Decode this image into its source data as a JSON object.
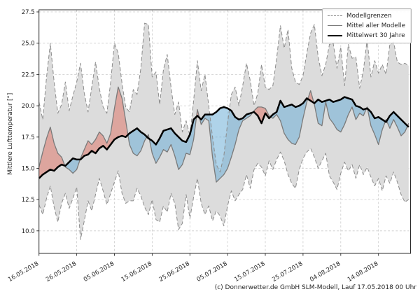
{
  "footer": {
    "text": "(c) Donnerwetter.de GmbH SLM-Modell, Lauf 17.05.2018 00 Uhr"
  },
  "chart_data": {
    "type": "line",
    "title": "",
    "xlabel": "",
    "ylabel": "Mittlere Lufttemperatur [°]",
    "ylim": [
      8.2,
      27.67
    ],
    "yticks": [
      10.0,
      12.5,
      15.0,
      17.5,
      20.0,
      22.5,
      25.0,
      27.5
    ],
    "grid": true,
    "legend_position": "upper right",
    "x_unit": "days since 16.05.2018",
    "x_tick_days": [
      0,
      10,
      20,
      30,
      40,
      50,
      60,
      70,
      80,
      90
    ],
    "x_tick_labels": [
      "16.05.2018",
      "26.05.2018",
      "05.06.2018",
      "15.06.2018",
      "25.06.2018",
      "05.07.2018",
      "15.07.2018",
      "25.07.2018",
      "04.08.2018",
      "14.08.2018"
    ],
    "legend": [
      {
        "label": "Modellgrenzen",
        "style": "dashed-gray"
      },
      {
        "label": "Mittel aller Modelle",
        "style": "solid-gray"
      },
      {
        "label": "Mittelwert 30 Jahre",
        "style": "solid-black-thick"
      }
    ],
    "colors": {
      "band_fill": "#dcdcdc",
      "band_border": "#8c8c8c",
      "mean_line": "#7a7a7a",
      "clim_line": "#000000",
      "warm_fill": "rgba(222,110,95,0.5)",
      "cold_fill": "rgba(110,175,215,0.55)",
      "grid": "#cccccc"
    },
    "series": [
      {
        "name": "Modellgrenzen (oberes Limit)",
        "values": [
          20.3,
          18.9,
          22.3,
          25.0,
          21.9,
          19.4,
          20.1,
          21.9,
          19.6,
          20.8,
          21.9,
          23.4,
          21.0,
          19.5,
          21.5,
          23.5,
          21.4,
          19.9,
          19.4,
          21.9,
          25.0,
          24.2,
          21.8,
          19.9,
          19.5,
          21.3,
          20.9,
          23.0,
          26.6,
          26.5,
          22.3,
          22.7,
          20.1,
          22.9,
          24.1,
          21.5,
          19.3,
          20.3,
          17.9,
          18.8,
          17.6,
          20.4,
          23.6,
          21.2,
          22.5,
          20.0,
          17.5,
          15.3,
          14.7,
          16.0,
          18.6,
          20.9,
          21.5,
          20.0,
          21.6,
          23.4,
          22.0,
          20.0,
          21.0,
          23.3,
          21.5,
          21.3,
          21.6,
          23.8,
          26.4,
          24.6,
          26.1,
          23.0,
          21.9,
          21.7,
          22.4,
          24.2,
          25.8,
          26.5,
          23.9,
          22.4,
          23.3,
          24.9,
          25.0,
          23.0,
          24.7,
          21.6,
          24.9,
          23.8,
          23.9,
          21.4,
          22.8,
          25.3,
          22.3,
          23.6,
          22.6,
          23.3,
          22.5,
          24.9,
          25.1,
          23.5,
          23.3,
          23.4,
          23.2
        ]
      },
      {
        "name": "Modellgrenzen (unteres Limit)",
        "values": [
          12.1,
          11.3,
          12.6,
          13.6,
          11.9,
          10.7,
          12.2,
          13.0,
          11.8,
          12.6,
          13.5,
          9.3,
          10.8,
          12.4,
          11.6,
          12.9,
          14.2,
          13.2,
          12.1,
          13.0,
          13.9,
          14.8,
          13.0,
          12.2,
          12.4,
          12.4,
          13.4,
          12.8,
          11.9,
          11.3,
          12.5,
          10.9,
          10.7,
          12.0,
          11.5,
          13.0,
          12.2,
          10.1,
          10.6,
          12.9,
          11.0,
          12.7,
          14.2,
          12.2,
          11.3,
          12.0,
          10.8,
          11.6,
          11.2,
          10.4,
          12.0,
          13.2,
          12.4,
          12.9,
          13.3,
          14.5,
          13.4,
          14.9,
          15.4,
          15.1,
          14.4,
          15.6,
          14.9,
          15.7,
          16.3,
          15.6,
          14.5,
          13.8,
          13.4,
          14.9,
          15.8,
          16.3,
          16.6,
          15.9,
          15.0,
          15.6,
          16.2,
          14.4,
          13.9,
          13.3,
          14.6,
          15.5,
          14.8,
          15.3,
          14.2,
          15.3,
          14.5,
          15.1,
          14.3,
          13.6,
          14.2,
          13.2,
          14.4,
          13.8,
          14.7,
          13.9,
          12.9,
          12.3,
          12.5
        ]
      },
      {
        "name": "Mittel aller Modelle",
        "values": [
          15.1,
          16.3,
          17.4,
          18.3,
          17.0,
          16.2,
          15.9,
          15.1,
          14.9,
          14.6,
          14.9,
          15.8,
          16.5,
          17.2,
          16.9,
          17.3,
          17.9,
          17.6,
          17.0,
          17.8,
          19.8,
          21.5,
          20.6,
          18.8,
          16.9,
          16.2,
          16.0,
          16.4,
          17.2,
          17.7,
          16.2,
          15.4,
          15.9,
          16.5,
          16.3,
          16.9,
          16.0,
          14.9,
          15.3,
          16.2,
          16.1,
          17.3,
          19.7,
          18.5,
          19.0,
          18.8,
          15.9,
          13.9,
          14.2,
          14.5,
          15.0,
          15.9,
          16.9,
          18.1,
          18.8,
          19.0,
          19.2,
          19.6,
          19.9,
          19.9,
          19.8,
          19.2,
          19.0,
          19.3,
          18.8,
          17.8,
          17.3,
          17.0,
          16.9,
          17.5,
          19.0,
          20.3,
          21.2,
          20.1,
          18.6,
          18.4,
          20.3,
          19.0,
          18.6,
          18.1,
          17.9,
          18.5,
          19.3,
          19.9,
          18.9,
          19.4,
          19.2,
          19.9,
          18.4,
          17.7,
          16.9,
          18.1,
          18.9,
          18.2,
          18.9,
          18.3,
          17.6,
          17.9,
          18.6
        ]
      },
      {
        "name": "Mittelwert 30 Jahre",
        "values": [
          14.2,
          14.5,
          14.7,
          14.9,
          14.8,
          15.1,
          15.3,
          15.2,
          15.5,
          15.8,
          15.7,
          15.7,
          16.0,
          16.1,
          16.4,
          16.2,
          16.6,
          16.8,
          16.5,
          16.9,
          17.3,
          17.5,
          17.6,
          17.5,
          17.8,
          18.0,
          18.2,
          17.9,
          17.7,
          17.4,
          17.2,
          16.9,
          17.4,
          18.0,
          18.1,
          18.2,
          17.8,
          17.5,
          17.2,
          17.1,
          17.7,
          18.9,
          19.2,
          18.9,
          19.3,
          19.3,
          19.3,
          19.5,
          19.8,
          19.9,
          19.8,
          19.6,
          19.1,
          18.9,
          19.0,
          19.3,
          19.4,
          19.5,
          19.2,
          18.6,
          19.4,
          19.0,
          19.3,
          19.5,
          20.4,
          19.9,
          20.0,
          20.1,
          19.9,
          20.0,
          20.2,
          20.6,
          20.4,
          20.2,
          20.5,
          20.3,
          20.4,
          20.5,
          20.3,
          20.4,
          20.5,
          20.7,
          20.6,
          20.5,
          20.0,
          19.9,
          19.7,
          19.8,
          19.5,
          19.0,
          19.1,
          18.9,
          18.7,
          19.2,
          19.5,
          19.2,
          18.9,
          18.6,
          18.3
        ]
      }
    ]
  }
}
